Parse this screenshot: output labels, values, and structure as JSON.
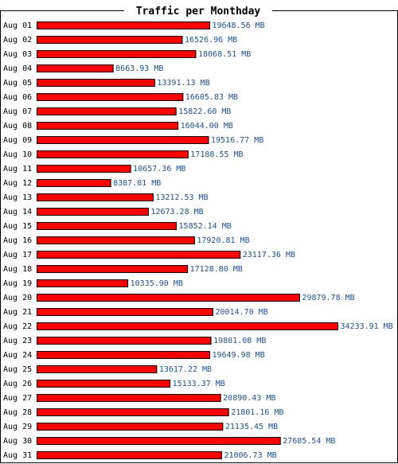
{
  "chart_data": {
    "type": "bar",
    "orientation": "horizontal",
    "title": "Traffic per Monthday",
    "unit": "MB",
    "bar_color": "#ff0000",
    "label_color": "#1f4f8f",
    "categories": [
      "Aug 01",
      "Aug 02",
      "Aug 03",
      "Aug 04",
      "Aug 05",
      "Aug 06",
      "Aug 07",
      "Aug 08",
      "Aug 09",
      "Aug 10",
      "Aug 11",
      "Aug 12",
      "Aug 13",
      "Aug 14",
      "Aug 15",
      "Aug 16",
      "Aug 17",
      "Aug 18",
      "Aug 19",
      "Aug 20",
      "Aug 21",
      "Aug 22",
      "Aug 23",
      "Aug 24",
      "Aug 25",
      "Aug 26",
      "Aug 27",
      "Aug 28",
      "Aug 29",
      "Aug 30",
      "Aug 31"
    ],
    "values": [
      19648.56,
      16526.96,
      18068.51,
      8663.93,
      13391.13,
      16605.83,
      15822.6,
      16044.0,
      19516.77,
      17188.55,
      10657.36,
      8387.81,
      13212.53,
      12673.28,
      15852.14,
      17920.81,
      23117.36,
      17128.8,
      10335.9,
      29879.78,
      20014.7,
      34233.91,
      19801.08,
      19649.98,
      13617.22,
      15133.37,
      20890.43,
      21801.16,
      21135.45,
      27685.54,
      21006.73
    ],
    "value_labels": [
      "19648.56 MB",
      "16526.96 MB",
      "18068.51 MB",
      "8663.93 MB",
      "13391.13 MB",
      "16605.83 MB",
      "15822.60 MB",
      "16044.00 MB",
      "19516.77 MB",
      "17188.55 MB",
      "10657.36 MB",
      "8387.81 MB",
      "13212.53 MB",
      "12673.28 MB",
      "15852.14 MB",
      "17920.81 MB",
      "23117.36 MB",
      "17128.80 MB",
      "10335.90 MB",
      "29879.78 MB",
      "20014.70 MB",
      "34233.91 MB",
      "19801.08 MB",
      "19649.98 MB",
      "13617.22 MB",
      "15133.37 MB",
      "20890.43 MB",
      "21801.16 MB",
      "21135.45 MB",
      "27685.54 MB",
      "21006.73 MB"
    ]
  }
}
